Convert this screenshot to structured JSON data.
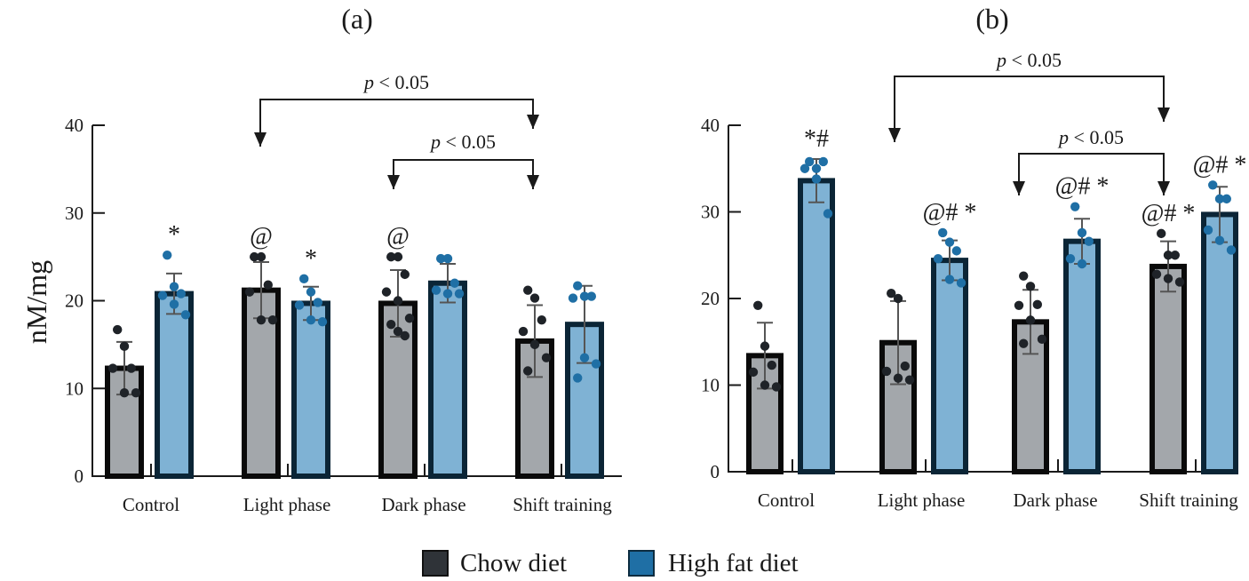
{
  "figure": {
    "ylabel": "nM/mg",
    "legend": [
      {
        "label": "Chow diet",
        "color": "#2f3338"
      },
      {
        "label": "High fat diet",
        "color": "#1f6fa5"
      }
    ]
  },
  "chart_data": [
    {
      "type": "bar",
      "title": "(a)",
      "xlabel": "",
      "ylabel": "nM/mg",
      "ylim": [
        0,
        40
      ],
      "yticks": [
        0,
        10,
        20,
        30,
        40
      ],
      "categories": [
        "Control",
        "Light phase",
        "Dark phase",
        "Shift training"
      ],
      "series": [
        {
          "name": "Chow diet",
          "fill": "#a3a7ab",
          "dot": "#1f2328",
          "values": [
            12.3,
            21.2,
            19.7,
            15.4
          ],
          "sd": [
            3.0,
            3.2,
            3.8,
            4.1
          ],
          "points": [
            [
              16.7,
              14.8,
              12.3,
              12.3,
              9.5,
              9.5
            ],
            [
              25.0,
              25.0,
              21.8,
              21.0,
              17.8,
              17.8
            ],
            [
              25.0,
              25.0,
              23.0,
              21.0,
              20.0,
              18.0,
              17.3,
              16.5,
              16.0
            ],
            [
              21.2,
              20.3,
              17.8,
              16.5,
              15.0,
              13.5,
              12.0
            ]
          ],
          "annotations": [
            "",
            "@",
            "@",
            ""
          ]
        },
        {
          "name": "High fat diet",
          "fill": "#7fb2d4",
          "dot": "#1f6fa5",
          "values": [
            20.8,
            19.7,
            22.0,
            17.3
          ],
          "sd": [
            2.3,
            1.9,
            2.2,
            4.4
          ],
          "points": [
            [
              25.2,
              21.6,
              20.8,
              20.6,
              19.6,
              18.4
            ],
            [
              22.5,
              21.0,
              19.8,
              19.5,
              17.8,
              17.6
            ],
            [
              24.8,
              24.8,
              22.0,
              21.2,
              20.8,
              20.8
            ],
            [
              21.7,
              20.5,
              20.5,
              20.3,
              13.5,
              12.8,
              11.2
            ]
          ],
          "annotations": [
            "*",
            "*",
            "",
            ""
          ]
        }
      ],
      "comparisons": [
        {
          "from": "Light phase",
          "to": "Shift training",
          "label": "p < 0.05"
        },
        {
          "from": "Dark phase",
          "to": "Shift training",
          "label": "p < 0.05"
        }
      ],
      "legend": "bottom-center",
      "grid": false
    },
    {
      "type": "bar",
      "title": "(b)",
      "xlabel": "",
      "ylabel": "",
      "ylim": [
        0,
        40
      ],
      "yticks": [
        0,
        10,
        20,
        30,
        40
      ],
      "categories": [
        "Control",
        "Light phase",
        "Dark phase",
        "Shift training"
      ],
      "series": [
        {
          "name": "Chow diet",
          "fill": "#a3a7ab",
          "dot": "#1f2328",
          "values": [
            13.4,
            14.9,
            17.3,
            23.7
          ],
          "sd": [
            3.8,
            4.8,
            3.7,
            2.9
          ],
          "points": [
            [
              19.2,
              14.5,
              12.3,
              11.5,
              10.0,
              9.8
            ],
            [
              20.6,
              20.0,
              12.2,
              11.6,
              10.8,
              10.6
            ],
            [
              22.6,
              21.4,
              19.3,
              19.2,
              17.5,
              15.3,
              14.8
            ],
            [
              27.5,
              25.0,
              25.0,
              22.8,
              22.3,
              21.9
            ]
          ],
          "annotations": [
            "",
            "",
            "",
            "@# *"
          ]
        },
        {
          "name": "High fat diet",
          "fill": "#7fb2d4",
          "dot": "#1f6fa5",
          "values": [
            33.6,
            24.4,
            26.6,
            29.7
          ],
          "sd": [
            2.5,
            2.3,
            2.6,
            3.2
          ],
          "points": [
            [
              35.8,
              35.0,
              35.8,
              35.0,
              33.8,
              29.8
            ],
            [
              27.6,
              26.5,
              25.5,
              24.6,
              22.2,
              21.8
            ],
            [
              30.6,
              27.6,
              26.6,
              24.6,
              24.0
            ],
            [
              33.1,
              31.5,
              31.5,
              27.9,
              26.7,
              25.6
            ]
          ],
          "annotations": [
            "*#",
            "@# *",
            "@# *",
            "@# *"
          ]
        }
      ],
      "comparisons": [
        {
          "from": "Light phase",
          "to": "Shift training",
          "label": "p < 0.05"
        },
        {
          "from": "Dark phase",
          "to": "Shift training",
          "label": "p < 0.05"
        }
      ],
      "legend": "bottom-center",
      "grid": false
    }
  ]
}
